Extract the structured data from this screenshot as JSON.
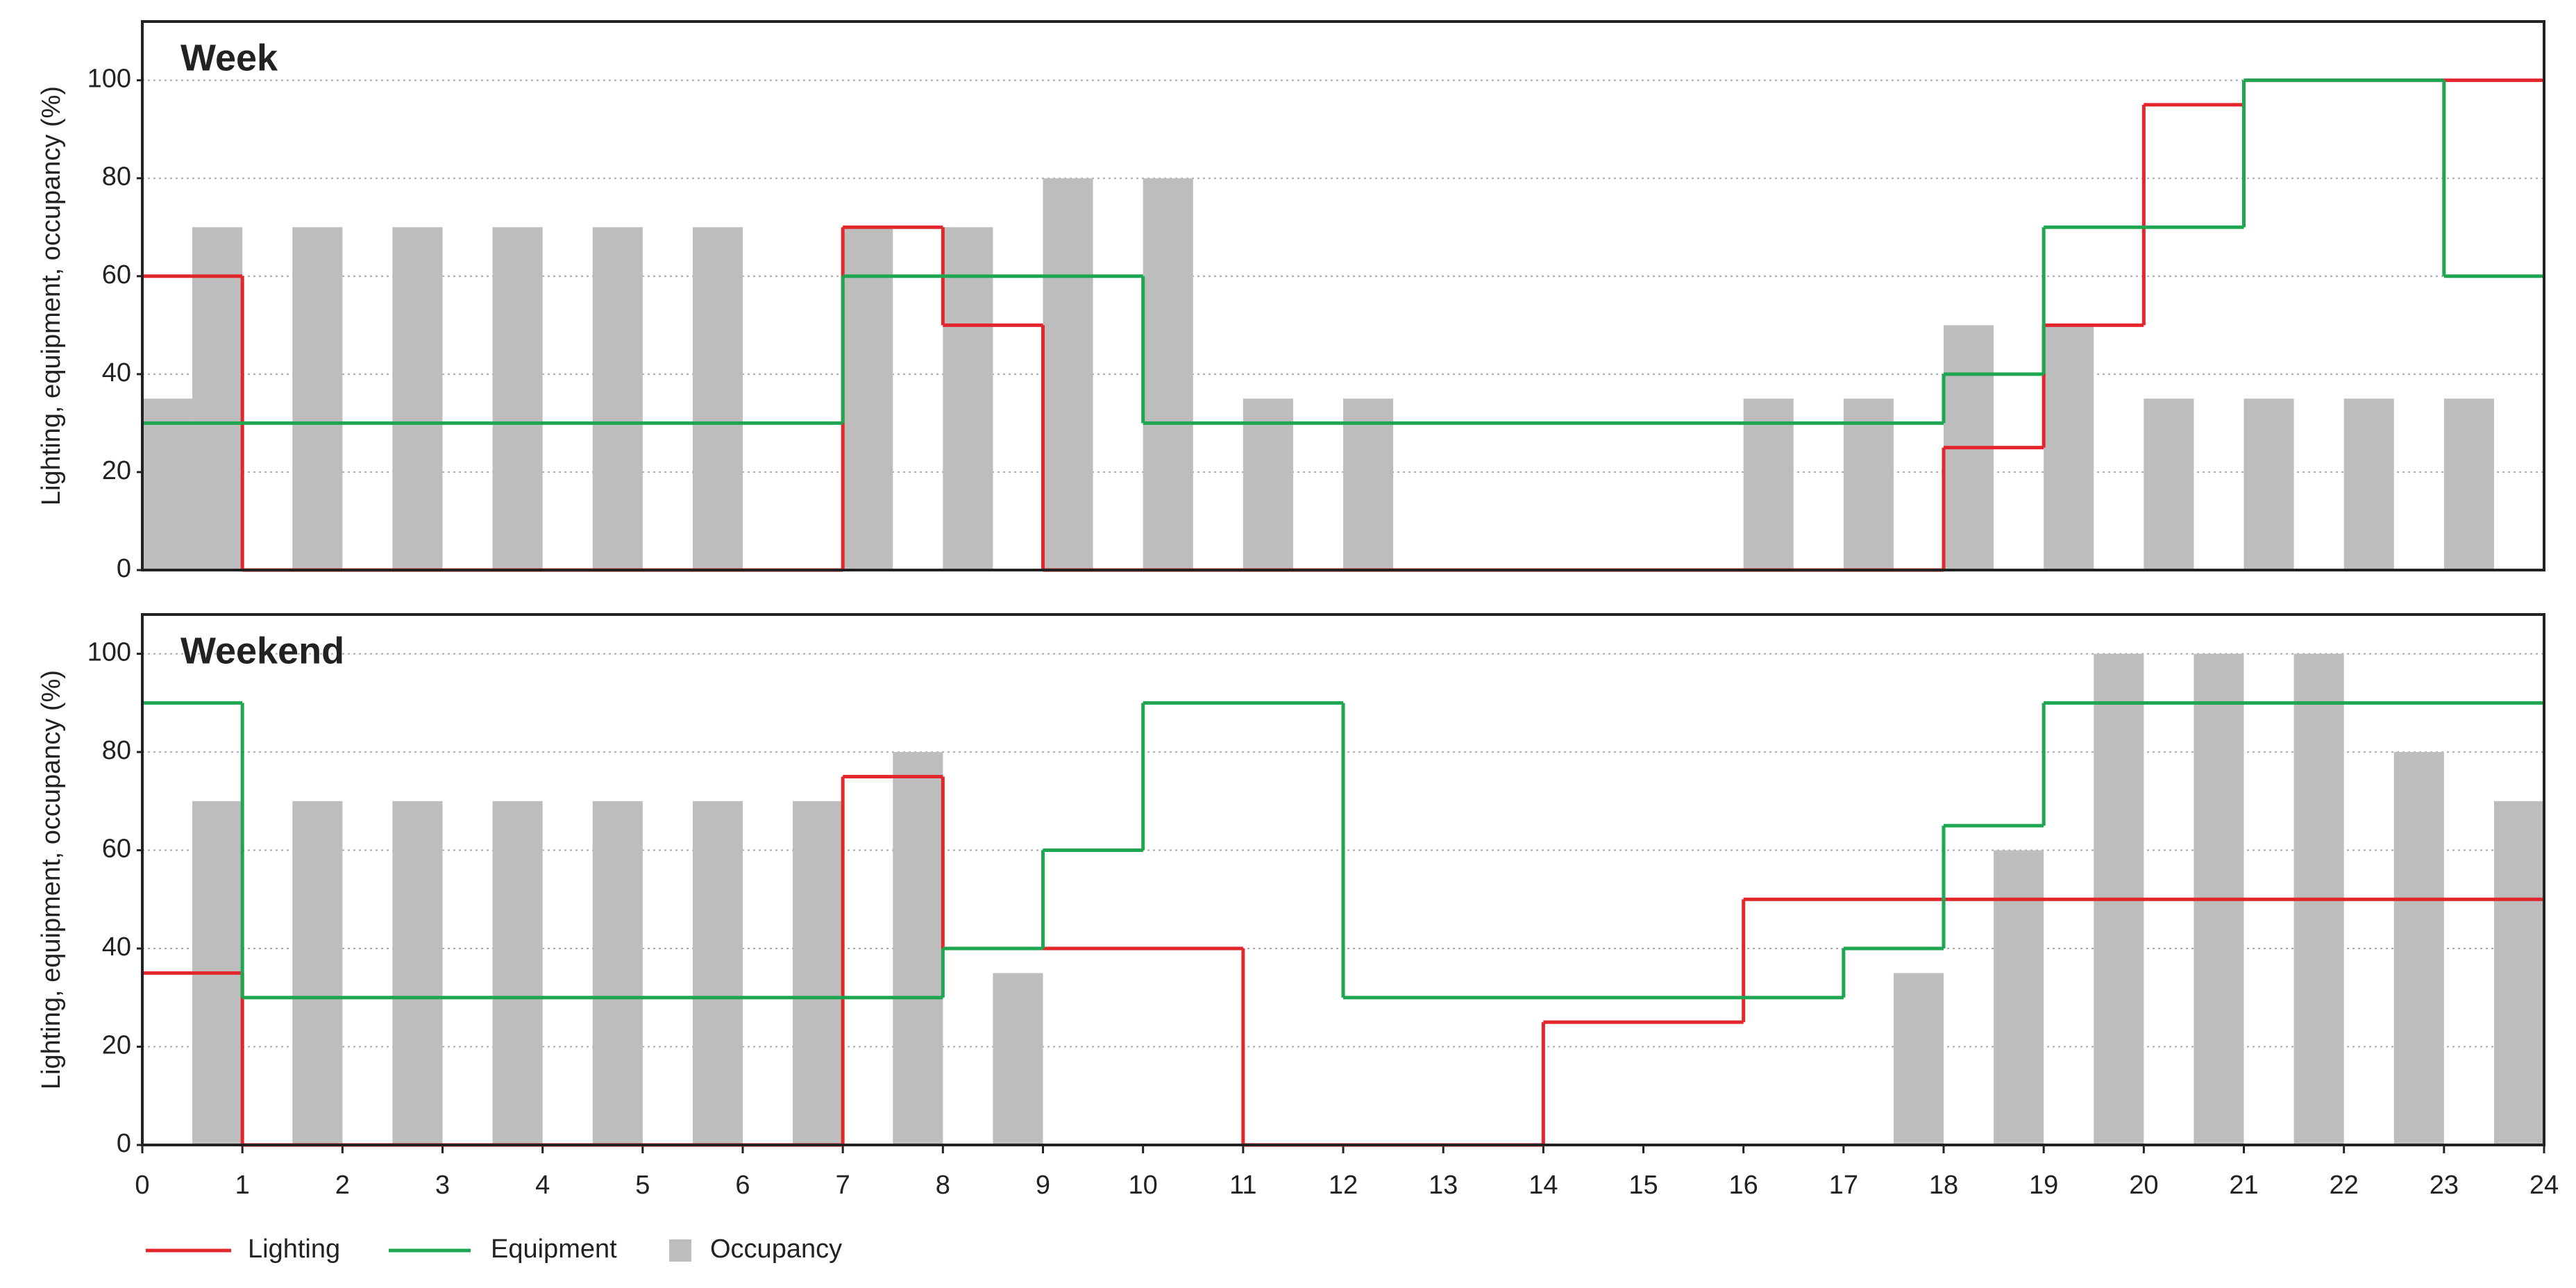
{
  "chart_data": [
    {
      "type": "step",
      "title": "Week",
      "ylabel": "Lighting, equipment, occupancy (%)",
      "xlim": [
        0,
        24
      ],
      "ylim": [
        0,
        112
      ],
      "yticks": [
        0,
        20,
        40,
        60,
        80,
        100
      ],
      "grid": true,
      "series": [
        {
          "name": "Occupancy",
          "type": "bar",
          "color": "#bdbdbd",
          "x": [
            0.25,
            0.75,
            1.75,
            2.75,
            3.75,
            4.75,
            5.75,
            7.25,
            8.25,
            9.25,
            10.25,
            11.25,
            12.25,
            16.25,
            17.25,
            18.25,
            19.25,
            20.25,
            21.25,
            22.25,
            23.25
          ],
          "values": [
            35,
            70,
            70,
            70,
            70,
            70,
            70,
            70,
            70,
            80,
            80,
            35,
            35,
            35,
            35,
            50,
            50,
            35,
            35,
            35,
            35
          ]
        },
        {
          "name": "Lighting",
          "type": "step",
          "color": "#e3262b",
          "bins": [
            0,
            1,
            7,
            8,
            9,
            18,
            19,
            20,
            21,
            24
          ],
          "values": [
            60,
            0,
            70,
            50,
            0,
            25,
            50,
            95,
            100
          ]
        },
        {
          "name": "Equipment",
          "type": "step",
          "color": "#1ea650",
          "bins": [
            0,
            7,
            10,
            18,
            19,
            21,
            23,
            24
          ],
          "values": [
            30,
            60,
            30,
            40,
            70,
            100,
            60
          ]
        }
      ]
    },
    {
      "type": "step",
      "title": "Weekend",
      "ylabel": "Lighting, equipment, occupancy (%)",
      "xlim": [
        0,
        24
      ],
      "ylim": [
        0,
        108
      ],
      "yticks": [
        0,
        20,
        40,
        60,
        80,
        100
      ],
      "grid": true,
      "xticks": [
        0,
        1,
        2,
        3,
        4,
        5,
        6,
        7,
        8,
        9,
        10,
        11,
        12,
        13,
        14,
        15,
        16,
        17,
        18,
        19,
        20,
        21,
        22,
        23,
        24
      ],
      "series": [
        {
          "name": "Occupancy",
          "type": "bar",
          "color": "#bdbdbd",
          "x": [
            0.75,
            1.75,
            2.75,
            3.75,
            4.75,
            5.75,
            6.75,
            7.75,
            8.75,
            17.75,
            18.75,
            19.75,
            20.75,
            21.75,
            22.75,
            23.75
          ],
          "values": [
            70,
            70,
            70,
            70,
            70,
            70,
            70,
            80,
            35,
            35,
            60,
            100,
            100,
            100,
            80,
            70
          ]
        },
        {
          "name": "Lighting",
          "type": "step",
          "color": "#e3262b",
          "bins": [
            0,
            1,
            7,
            8,
            11,
            14,
            16,
            24
          ],
          "values": [
            35,
            0,
            75,
            40,
            0,
            25,
            50
          ]
        },
        {
          "name": "Equipment",
          "type": "step",
          "color": "#1ea650",
          "bins": [
            0,
            1,
            8,
            9,
            10,
            12,
            17,
            18,
            19,
            24
          ],
          "values": [
            90,
            30,
            40,
            60,
            90,
            30,
            40,
            65,
            90
          ]
        }
      ]
    }
  ]
}
